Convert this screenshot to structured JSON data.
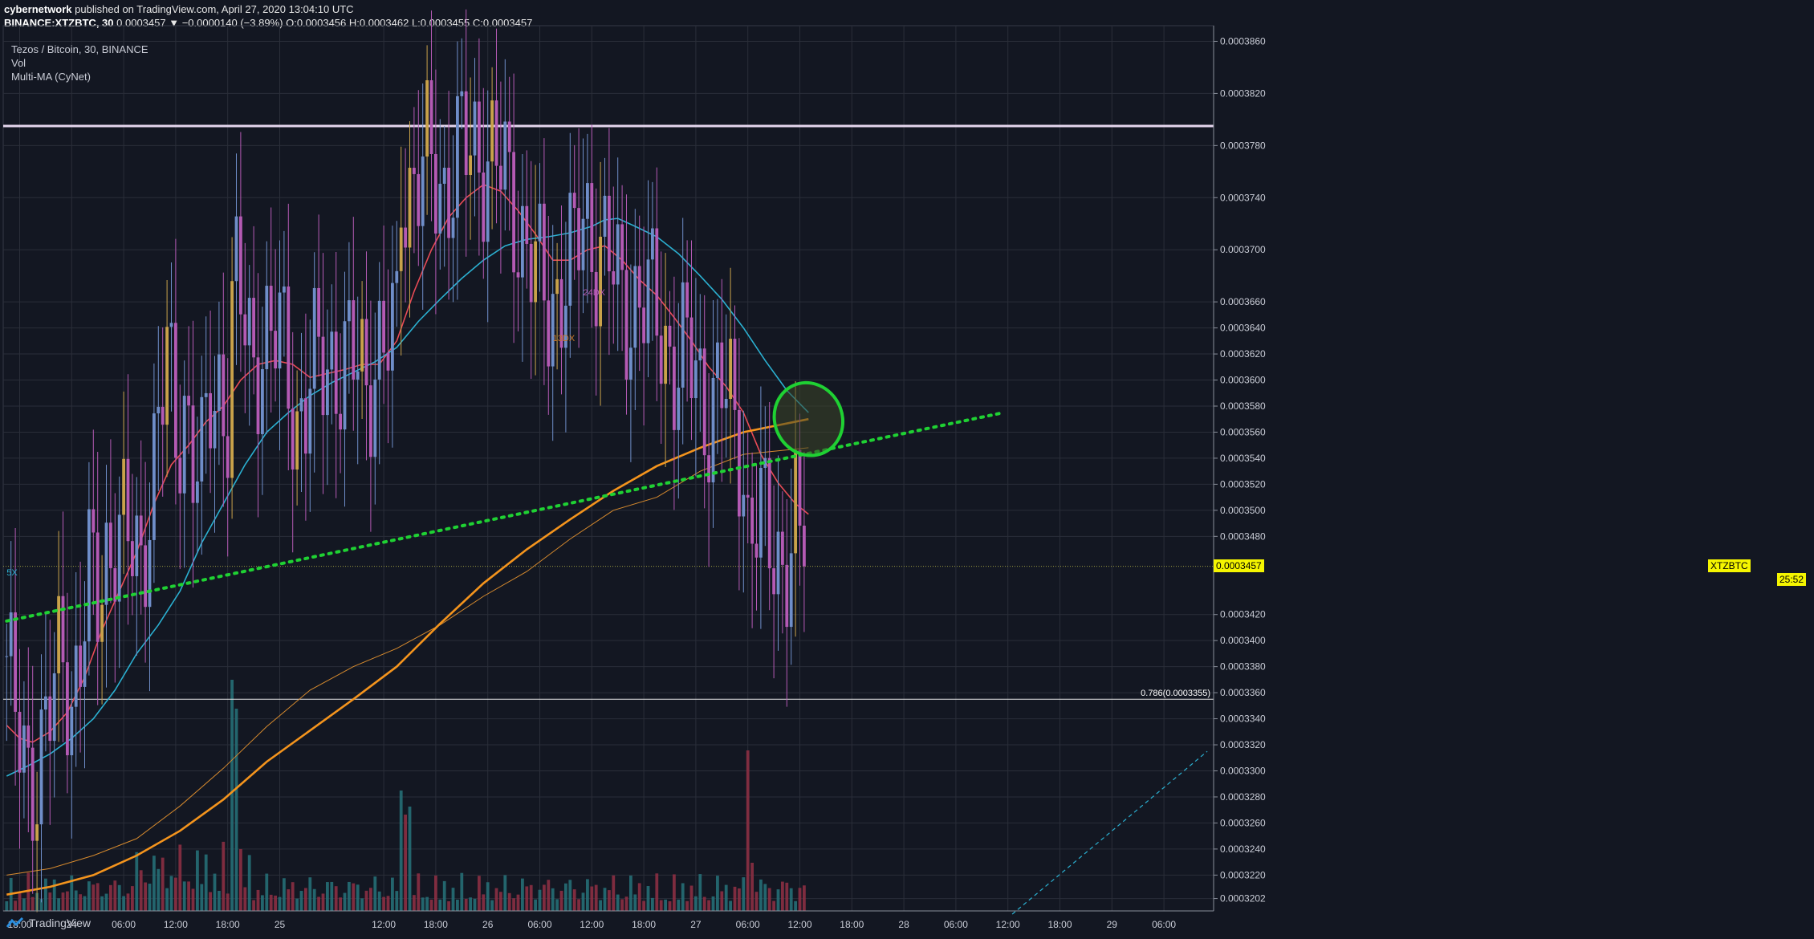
{
  "header": {
    "author": "cybernetwork",
    "published_text": "published on TradingView.com, April 27, 2020 13:04:10 UTC",
    "symbol": "BINANCE:XTZBTC, 30",
    "last": "0.0003457",
    "change": "▼ −0.0000140 (−3.89%)",
    "ohlc": "O:0.0003456 H:0.0003462 L:0.0003455 C:0.0003457"
  },
  "legend": [
    "Tezos / Bitcoin, 30, BINANCE",
    "Vol",
    "Multi-MA (CyNet)"
  ],
  "footer": {
    "brand": "TradingView"
  },
  "colors": {
    "background": "#131722",
    "grid": "#2a2e39",
    "up": "#6f8ec9",
    "up_alt": "#c9a24a",
    "down": "#b45ab4",
    "ma_fast": "#e94b56",
    "ma_mid": "#2bb0d1",
    "ma_slow": "#f4941d",
    "ma_slow_thin": "#d68a2e",
    "trendline": "#1fd133",
    "vol_up": "#266e76",
    "vol_down": "#8b2f43",
    "price_tag": "#f5f500",
    "resistance": "#e5d7ee"
  },
  "chart_data": {
    "type": "candlestick",
    "symbol_tag": "XTZBTC",
    "current_price": "0.0003457",
    "countdown": "25:52",
    "y_axis": {
      "range": [
        0.00031925,
        0.0003872
      ],
      "ticks": [
        "0.0003860",
        "0.0003820",
        "0.0003780",
        "0.0003740",
        "0.0003700",
        "0.0003660",
        "0.0003640",
        "0.0003620",
        "0.0003600",
        "0.0003580",
        "0.0003560",
        "0.0003540",
        "0.0003520",
        "0.0003500",
        "0.0003480",
        "0.0003420",
        "0.0003400",
        "0.0003380",
        "0.0003360",
        "0.0003340",
        "0.0003320",
        "0.0003300",
        "0.0003280",
        "0.0003260",
        "0.0003240",
        "0.0003220",
        "0.0003202"
      ]
    },
    "x_axis": {
      "ticks": [
        {
          "label": "18:00",
          "bar": 3
        },
        {
          "label": "24",
          "bar": 15
        },
        {
          "label": "06:00",
          "bar": 27
        },
        {
          "label": "12:00",
          "bar": 39
        },
        {
          "label": "18:00",
          "bar": 51
        },
        {
          "label": "25",
          "bar": 63
        },
        {
          "label": "12:00",
          "bar": 87
        },
        {
          "label": "18:00",
          "bar": 99
        },
        {
          "label": "26",
          "bar": 111
        },
        {
          "label": "06:00",
          "bar": 123
        },
        {
          "label": "12:00",
          "bar": 135
        },
        {
          "label": "18:00",
          "bar": 147
        },
        {
          "label": "27",
          "bar": 159
        },
        {
          "label": "06:00",
          "bar": 171
        },
        {
          "label": "12:00",
          "bar": 183
        },
        {
          "label": "18:00",
          "bar": 195
        },
        {
          "label": "28",
          "bar": 207
        },
        {
          "label": "06:00",
          "bar": 219
        },
        {
          "label": "12:00",
          "bar": 231
        },
        {
          "label": "18:00",
          "bar": 243
        },
        {
          "label": "29",
          "bar": 255
        },
        {
          "label": "06:00",
          "bar": 267
        }
      ]
    },
    "fib_level": {
      "label": "0.786(0.0003355)",
      "price": 0.0003355
    },
    "resistance_level": 0.0003795,
    "annotations": [
      {
        "text": "13DX",
        "bar": 126,
        "price": 0.000363
      },
      {
        "text": "24DX",
        "bar": 133,
        "price": 0.0003665
      },
      {
        "text": "5X",
        "bar": 0,
        "price": 0.000345
      }
    ],
    "trendline": {
      "from": {
        "bar": 0,
        "price": 0.0003415
      },
      "to": {
        "bar": 230,
        "price": 0.0003575
      }
    },
    "projection_line": {
      "from": {
        "bar": 232,
        "price": 0.000319
      },
      "to": {
        "bar": 277,
        "price": 0.0003315
      }
    },
    "ellipse_marker": {
      "bar": 185,
      "price": 0.000357
    },
    "series": [
      {
        "name": "Tezos / Bitcoin",
        "kind": "ohlc",
        "key_points": [
          [
            0,
            0.0003388
          ],
          [
            2,
            0.000333
          ],
          [
            5,
            0.0003295
          ],
          [
            8,
            0.000332
          ],
          [
            11,
            0.0003355
          ],
          [
            13,
            0.000339
          ],
          [
            15,
            0.000336
          ],
          [
            17,
            0.0003395
          ],
          [
            19,
            0.000344
          ],
          [
            21,
            0.000343
          ],
          [
            23,
            0.000347
          ],
          [
            25,
            0.000349
          ],
          [
            28,
            0.000347
          ],
          [
            31,
            0.000346
          ],
          [
            33,
            0.000352
          ],
          [
            35,
            0.000356
          ],
          [
            37,
            0.0003612
          ],
          [
            39,
            0.000356
          ],
          [
            41,
            0.000359
          ],
          [
            43,
            0.000354
          ],
          [
            45,
            0.000352
          ],
          [
            47,
            0.0003585
          ],
          [
            49,
            0.00036
          ],
          [
            51,
            0.000358
          ],
          [
            52,
            0.000365
          ],
          [
            53,
            0.0003665
          ],
          [
            55,
            0.000364
          ],
          [
            57,
            0.0003615
          ],
          [
            59,
            0.000364
          ],
          [
            61,
            0.0003625
          ],
          [
            63,
            0.000363
          ],
          [
            65,
            0.000361
          ],
          [
            67,
            0.000357
          ],
          [
            69,
            0.000358
          ],
          [
            71,
            0.00036
          ],
          [
            73,
            0.0003615
          ],
          [
            75,
            0.000362
          ],
          [
            77,
            0.000361
          ],
          [
            79,
            0.0003605
          ],
          [
            81,
            0.0003615
          ],
          [
            83,
            0.0003605
          ],
          [
            85,
            0.000362
          ],
          [
            87,
            0.0003615
          ],
          [
            89,
            0.000363
          ],
          [
            90,
            0.000364
          ],
          [
            91,
            0.000376
          ],
          [
            93,
            0.000375
          ],
          [
            95,
            0.0003755
          ],
          [
            98,
            0.000376
          ],
          [
            101,
            0.000375
          ],
          [
            104,
            0.000377
          ],
          [
            107,
            0.0003775
          ],
          [
            109,
            0.000378
          ],
          [
            111,
            0.0003775
          ],
          [
            113,
            0.0003765
          ],
          [
            115,
            0.0003748
          ],
          [
            117,
            0.0003735
          ],
          [
            119,
            0.0003715
          ],
          [
            121,
            0.0003695
          ],
          [
            123,
            0.0003665
          ],
          [
            125,
            0.0003655
          ],
          [
            127,
            0.000367
          ],
          [
            129,
            0.0003685
          ],
          [
            131,
            0.000369
          ],
          [
            133,
            0.000372
          ],
          [
            135,
            0.0003715
          ],
          [
            137,
            0.0003705
          ],
          [
            139,
            0.000369
          ],
          [
            141,
            0.0003665
          ],
          [
            143,
            0.000366
          ],
          [
            145,
            0.0003665
          ],
          [
            147,
            0.000366
          ],
          [
            149,
            0.000365
          ],
          [
            151,
            0.000364
          ],
          [
            153,
            0.0003625
          ],
          [
            155,
            0.000361
          ],
          [
            157,
            0.0003615
          ],
          [
            159,
            0.0003605
          ],
          [
            161,
            0.0003585
          ],
          [
            163,
            0.0003585
          ],
          [
            165,
            0.000359
          ],
          [
            167,
            0.0003575
          ],
          [
            169,
            0.000356
          ],
          [
            170,
            0.000354
          ],
          [
            171,
            0.0003485
          ],
          [
            173,
            0.000349
          ],
          [
            175,
            0.000348
          ],
          [
            177,
            0.0003475
          ],
          [
            179,
            0.0003465
          ],
          [
            181,
            0.000347
          ],
          [
            182,
            0.000348
          ],
          [
            183,
            0.0003465
          ],
          [
            184,
            0.0003457
          ]
        ]
      },
      {
        "name": "MA fast",
        "kind": "line",
        "points": [
          [
            0,
            0.0003335
          ],
          [
            3,
            0.0003325
          ],
          [
            6,
            0.0003322
          ],
          [
            10,
            0.000333
          ],
          [
            14,
            0.0003345
          ],
          [
            18,
            0.0003372
          ],
          [
            22,
            0.0003408
          ],
          [
            26,
            0.0003438
          ],
          [
            30,
            0.0003468
          ],
          [
            34,
            0.0003505
          ],
          [
            38,
            0.0003535
          ],
          [
            42,
            0.000355
          ],
          [
            46,
            0.0003568
          ],
          [
            50,
            0.000358
          ],
          [
            54,
            0.00036
          ],
          [
            58,
            0.0003612
          ],
          [
            62,
            0.0003615
          ],
          [
            66,
            0.0003612
          ],
          [
            70,
            0.0003602
          ],
          [
            74,
            0.0003605
          ],
          [
            78,
            0.0003608
          ],
          [
            82,
            0.0003612
          ],
          [
            86,
            0.0003612
          ],
          [
            90,
            0.000363
          ],
          [
            94,
            0.0003668
          ],
          [
            98,
            0.00037
          ],
          [
            102,
            0.0003725
          ],
          [
            106,
            0.000374
          ],
          [
            110,
            0.000375
          ],
          [
            114,
            0.0003745
          ],
          [
            118,
            0.000373
          ],
          [
            122,
            0.0003712
          ],
          [
            126,
            0.0003692
          ],
          [
            130,
            0.0003692
          ],
          [
            134,
            0.00037
          ],
          [
            138,
            0.0003703
          ],
          [
            142,
            0.0003692
          ],
          [
            146,
            0.0003677
          ],
          [
            150,
            0.0003665
          ],
          [
            154,
            0.0003648
          ],
          [
            158,
            0.000363
          ],
          [
            162,
            0.000361
          ],
          [
            166,
            0.0003595
          ],
          [
            170,
            0.0003575
          ],
          [
            174,
            0.0003543
          ],
          [
            178,
            0.0003521
          ],
          [
            182,
            0.0003505
          ],
          [
            185,
            0.0003497
          ]
        ]
      },
      {
        "name": "MA mid",
        "kind": "line",
        "points": [
          [
            0,
            0.0003296
          ],
          [
            5,
            0.0003304
          ],
          [
            10,
            0.0003313
          ],
          [
            15,
            0.0003325
          ],
          [
            20,
            0.000334
          ],
          [
            25,
            0.0003362
          ],
          [
            30,
            0.000339
          ],
          [
            35,
            0.0003412
          ],
          [
            40,
            0.0003438
          ],
          [
            45,
            0.0003475
          ],
          [
            50,
            0.0003505
          ],
          [
            55,
            0.0003535
          ],
          [
            60,
            0.000356
          ],
          [
            65,
            0.0003575
          ],
          [
            70,
            0.0003588
          ],
          [
            75,
            0.0003598
          ],
          [
            80,
            0.0003606
          ],
          [
            85,
            0.0003614
          ],
          [
            90,
            0.0003625
          ],
          [
            95,
            0.0003645
          ],
          [
            100,
            0.0003662
          ],
          [
            105,
            0.0003678
          ],
          [
            110,
            0.0003692
          ],
          [
            115,
            0.0003703
          ],
          [
            120,
            0.0003708
          ],
          [
            125,
            0.000371
          ],
          [
            130,
            0.0003713
          ],
          [
            135,
            0.0003718
          ],
          [
            138,
            0.0003723
          ],
          [
            141,
            0.0003724
          ],
          [
            145,
            0.0003718
          ],
          [
            150,
            0.000371
          ],
          [
            155,
            0.0003697
          ],
          [
            160,
            0.000368
          ],
          [
            165,
            0.0003662
          ],
          [
            170,
            0.000364
          ],
          [
            175,
            0.0003615
          ],
          [
            180,
            0.0003592
          ],
          [
            185,
            0.0003575
          ]
        ]
      },
      {
        "name": "MA slow thin",
        "kind": "line",
        "points": [
          [
            0,
            0.000322
          ],
          [
            10,
            0.0003225
          ],
          [
            20,
            0.0003235
          ],
          [
            30,
            0.0003248
          ],
          [
            40,
            0.0003273
          ],
          [
            50,
            0.0003302
          ],
          [
            60,
            0.0003334
          ],
          [
            70,
            0.0003362
          ],
          [
            80,
            0.000338
          ],
          [
            90,
            0.0003394
          ],
          [
            100,
            0.0003412
          ],
          [
            110,
            0.0003434
          ],
          [
            120,
            0.0003453
          ],
          [
            130,
            0.0003478
          ],
          [
            140,
            0.00035
          ],
          [
            150,
            0.000351
          ],
          [
            160,
            0.000353
          ],
          [
            170,
            0.0003543
          ],
          [
            185,
            0.0003548
          ]
        ]
      },
      {
        "name": "MA slow",
        "kind": "line",
        "points": [
          [
            0,
            0.0003205
          ],
          [
            10,
            0.0003211
          ],
          [
            20,
            0.000322
          ],
          [
            30,
            0.0003235
          ],
          [
            40,
            0.0003254
          ],
          [
            50,
            0.0003278
          ],
          [
            60,
            0.0003307
          ],
          [
            70,
            0.0003331
          ],
          [
            80,
            0.0003355
          ],
          [
            90,
            0.000338
          ],
          [
            100,
            0.0003413
          ],
          [
            110,
            0.0003444
          ],
          [
            120,
            0.000347
          ],
          [
            130,
            0.0003493
          ],
          [
            140,
            0.0003515
          ],
          [
            150,
            0.0003534
          ],
          [
            160,
            0.0003548
          ],
          [
            170,
            0.000356
          ],
          [
            185,
            0.000357
          ]
        ]
      }
    ]
  }
}
